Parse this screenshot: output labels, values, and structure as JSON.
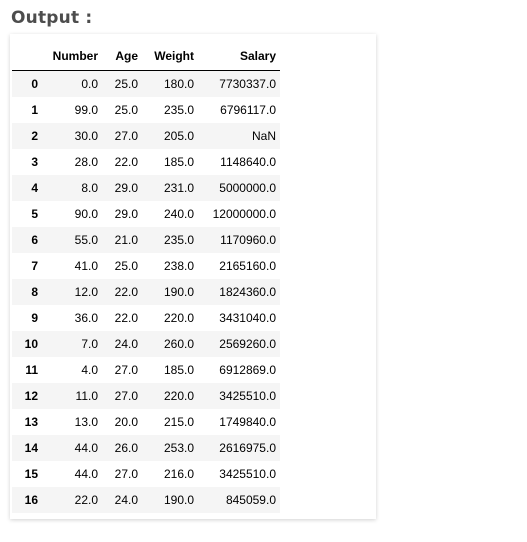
{
  "heading": "Output :",
  "table": {
    "columns": [
      "Number",
      "Age",
      "Weight",
      "Salary"
    ],
    "rows": [
      {
        "index": "0",
        "cells": [
          "0.0",
          "25.0",
          "180.0",
          "7730337.0"
        ]
      },
      {
        "index": "1",
        "cells": [
          "99.0",
          "25.0",
          "235.0",
          "6796117.0"
        ]
      },
      {
        "index": "2",
        "cells": [
          "30.0",
          "27.0",
          "205.0",
          "NaN"
        ]
      },
      {
        "index": "3",
        "cells": [
          "28.0",
          "22.0",
          "185.0",
          "1148640.0"
        ]
      },
      {
        "index": "4",
        "cells": [
          "8.0",
          "29.0",
          "231.0",
          "5000000.0"
        ]
      },
      {
        "index": "5",
        "cells": [
          "90.0",
          "29.0",
          "240.0",
          "12000000.0"
        ]
      },
      {
        "index": "6",
        "cells": [
          "55.0",
          "21.0",
          "235.0",
          "1170960.0"
        ]
      },
      {
        "index": "7",
        "cells": [
          "41.0",
          "25.0",
          "238.0",
          "2165160.0"
        ]
      },
      {
        "index": "8",
        "cells": [
          "12.0",
          "22.0",
          "190.0",
          "1824360.0"
        ]
      },
      {
        "index": "9",
        "cells": [
          "36.0",
          "22.0",
          "220.0",
          "3431040.0"
        ]
      },
      {
        "index": "10",
        "cells": [
          "7.0",
          "24.0",
          "260.0",
          "2569260.0"
        ]
      },
      {
        "index": "11",
        "cells": [
          "4.0",
          "27.0",
          "185.0",
          "6912869.0"
        ]
      },
      {
        "index": "12",
        "cells": [
          "11.0",
          "27.0",
          "220.0",
          "3425510.0"
        ]
      },
      {
        "index": "13",
        "cells": [
          "13.0",
          "20.0",
          "215.0",
          "1749840.0"
        ]
      },
      {
        "index": "14",
        "cells": [
          "44.0",
          "26.0",
          "253.0",
          "2616975.0"
        ]
      },
      {
        "index": "15",
        "cells": [
          "44.0",
          "27.0",
          "216.0",
          "3425510.0"
        ]
      },
      {
        "index": "16",
        "cells": [
          "22.0",
          "24.0",
          "190.0",
          "845059.0"
        ]
      }
    ]
  }
}
